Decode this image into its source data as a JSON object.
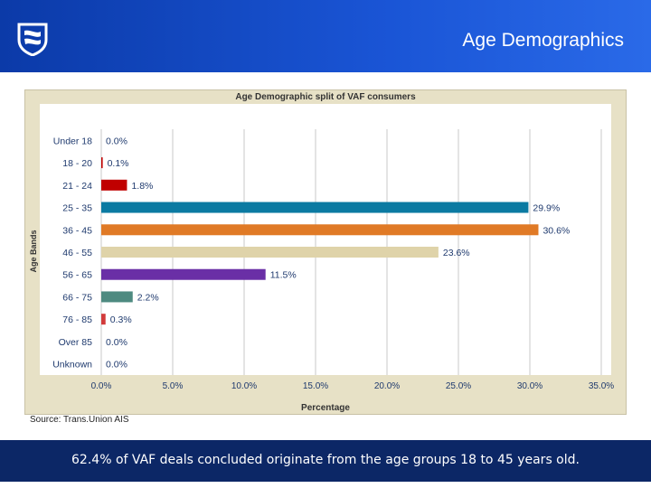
{
  "header": {
    "title": "Age Demographics",
    "logo_icon": "bank-shield-logo-icon"
  },
  "chart_data": {
    "type": "bar",
    "orientation": "horizontal",
    "title": "Age Demographic split of VAF consumers",
    "xlabel": "Percentage",
    "ylabel": "Age Bands",
    "xlim": [
      0,
      35
    ],
    "xticks": [
      "0.0%",
      "5.0%",
      "10.0%",
      "15.0%",
      "20.0%",
      "25.0%",
      "30.0%",
      "35.0%"
    ],
    "grid": true,
    "categories": [
      "Under 18",
      "18 - 20",
      "21 - 24",
      "25 - 35",
      "36 - 45",
      "46 - 55",
      "56 - 65",
      "66 - 75",
      "76 - 85",
      "Over 85",
      "Unknown"
    ],
    "values": [
      0.0,
      0.1,
      1.8,
      29.9,
      30.6,
      23.6,
      11.5,
      2.2,
      0.3,
      0.0,
      0.0
    ],
    "labels": [
      "0.0%",
      "0.1%",
      "1.8%",
      "29.9%",
      "30.6%",
      "23.6%",
      "11.5%",
      "2.2%",
      "0.3%",
      "0.0%",
      "0.0%"
    ],
    "colors": [
      "#c00000",
      "#c00000",
      "#c00000",
      "#0b7aa2",
      "#e07a26",
      "#dfd3a9",
      "#6a2fa6",
      "#4e8a80",
      "#d23a3a",
      "#c00000",
      "#c00000"
    ]
  },
  "source": "Source: Trans.Union AIS",
  "footer": {
    "text": "62.4% of VAF deals concluded originate from the age groups 18 to 45 years old."
  }
}
